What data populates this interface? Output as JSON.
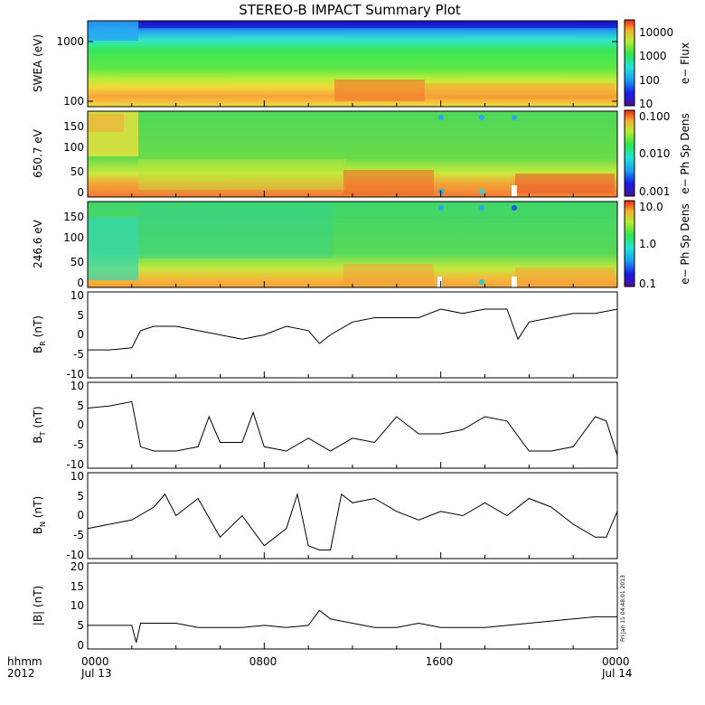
{
  "title": "STEREO-B IMPACT Summary Plot",
  "stamp": "Fri Jan 11 04:48:01 2013",
  "time_axis": {
    "row1_labels": [
      "hhmm",
      "0000",
      "0800",
      "1600",
      "0000"
    ],
    "row2_labels": [
      "2012",
      "Jul 13",
      "Jul 14"
    ]
  },
  "chart_data": [
    {
      "type": "heatmap",
      "ylabel": "SWEA (eV)",
      "yscale": "log",
      "yticks": [
        "1000",
        "100"
      ],
      "colorbar_label": "e− Flux",
      "colorbar_ticks": [
        "10000",
        "1000",
        "100",
        "10"
      ]
    },
    {
      "type": "heatmap",
      "ylabel": "650.7 eV",
      "ylim": [
        0,
        180
      ],
      "yticks": [
        "150",
        "100",
        "50",
        "0"
      ],
      "colorbar_label": "e− Ph Sp Dens",
      "colorbar_ticks": [
        "0.100",
        "0.010",
        "0.001"
      ]
    },
    {
      "type": "heatmap",
      "ylabel": "246.6 eV",
      "ylim": [
        0,
        180
      ],
      "yticks": [
        "150",
        "100",
        "50",
        "0"
      ],
      "colorbar_label": "e− Ph Sp Dens",
      "colorbar_ticks": [
        "10.0",
        "1.0",
        "0.1"
      ]
    },
    {
      "type": "line",
      "ylabel": "B",
      "ylabel_sub": "R",
      "ylabel_unit": "(nT)",
      "ylim": [
        -10,
        10
      ],
      "yticks": [
        "10",
        "5",
        "0",
        "-5",
        "-10"
      ],
      "x_hours": [
        0,
        1,
        2,
        2.4,
        3,
        4,
        5,
        6,
        7,
        8,
        9,
        10,
        10.5,
        11,
        12,
        13,
        14,
        15,
        16,
        17,
        18,
        19,
        19.5,
        20,
        21,
        22,
        23,
        24
      ],
      "y": [
        -3.5,
        -3.5,
        -3,
        1,
        2,
        2,
        1,
        0,
        -1,
        0,
        2,
        1,
        -2,
        0,
        3,
        4,
        4,
        4,
        6,
        5,
        6,
        6,
        -1,
        3,
        4,
        5,
        5,
        6
      ]
    },
    {
      "type": "line",
      "ylabel": "B",
      "ylabel_sub": "T",
      "ylabel_unit": "(nT)",
      "ylim": [
        -10,
        10
      ],
      "yticks": [
        "10",
        "5",
        "0",
        "-5",
        "-10"
      ],
      "x_hours": [
        0,
        1,
        2,
        2.4,
        3,
        4,
        5,
        5.5,
        6,
        7,
        7.5,
        8,
        9,
        10,
        11,
        12,
        13,
        14,
        15,
        16,
        17,
        18,
        19,
        20,
        21,
        22,
        23,
        23.5,
        24
      ],
      "y": [
        4,
        4.5,
        5.5,
        -5,
        -6,
        -6,
        -5,
        2,
        -4,
        -4,
        3,
        -5,
        -6,
        -3,
        -6,
        -3,
        -4,
        2,
        -2,
        -2,
        -1,
        2,
        1,
        -6,
        -6,
        -5,
        2,
        1,
        -7
      ]
    },
    {
      "type": "line",
      "ylabel": "B",
      "ylabel_sub": "N",
      "ylabel_unit": "(nT)",
      "ylim": [
        -10,
        10
      ],
      "yticks": [
        "10",
        "5",
        "0",
        "-5",
        "-10"
      ],
      "x_hours": [
        0,
        1,
        2,
        3,
        3.5,
        4,
        5,
        6,
        7,
        8,
        9,
        9.5,
        10,
        10.5,
        11,
        11.5,
        12,
        13,
        14,
        15,
        16,
        17,
        18,
        19,
        20,
        21,
        22,
        23,
        23.5,
        24
      ],
      "y": [
        -3,
        -2,
        -1,
        2,
        5,
        0,
        4,
        -5,
        0,
        -7,
        -3,
        5,
        -7,
        -8,
        -8,
        5,
        3,
        4,
        1,
        -1,
        1,
        0,
        3,
        0,
        4,
        2,
        -2,
        -5,
        -5,
        1
      ]
    },
    {
      "type": "line",
      "ylabel": "|B| (nT)",
      "ylim": [
        0,
        20
      ],
      "yticks": [
        "20",
        "15",
        "10",
        "5",
        "0"
      ],
      "x_hours": [
        0,
        1,
        2,
        2.2,
        2.4,
        3,
        4,
        5,
        6,
        7,
        8,
        9,
        10,
        10.5,
        11,
        12,
        13,
        14,
        15,
        16,
        17,
        18,
        19,
        20,
        21,
        22,
        23,
        24
      ],
      "y": [
        5.5,
        5.5,
        5.5,
        1.5,
        6,
        6,
        6,
        5,
        5,
        5,
        5.5,
        5,
        5.5,
        9,
        7,
        6,
        5,
        5,
        6,
        5,
        5,
        5,
        5.5,
        6,
        6.5,
        7,
        7.5,
        7.5
      ]
    }
  ]
}
